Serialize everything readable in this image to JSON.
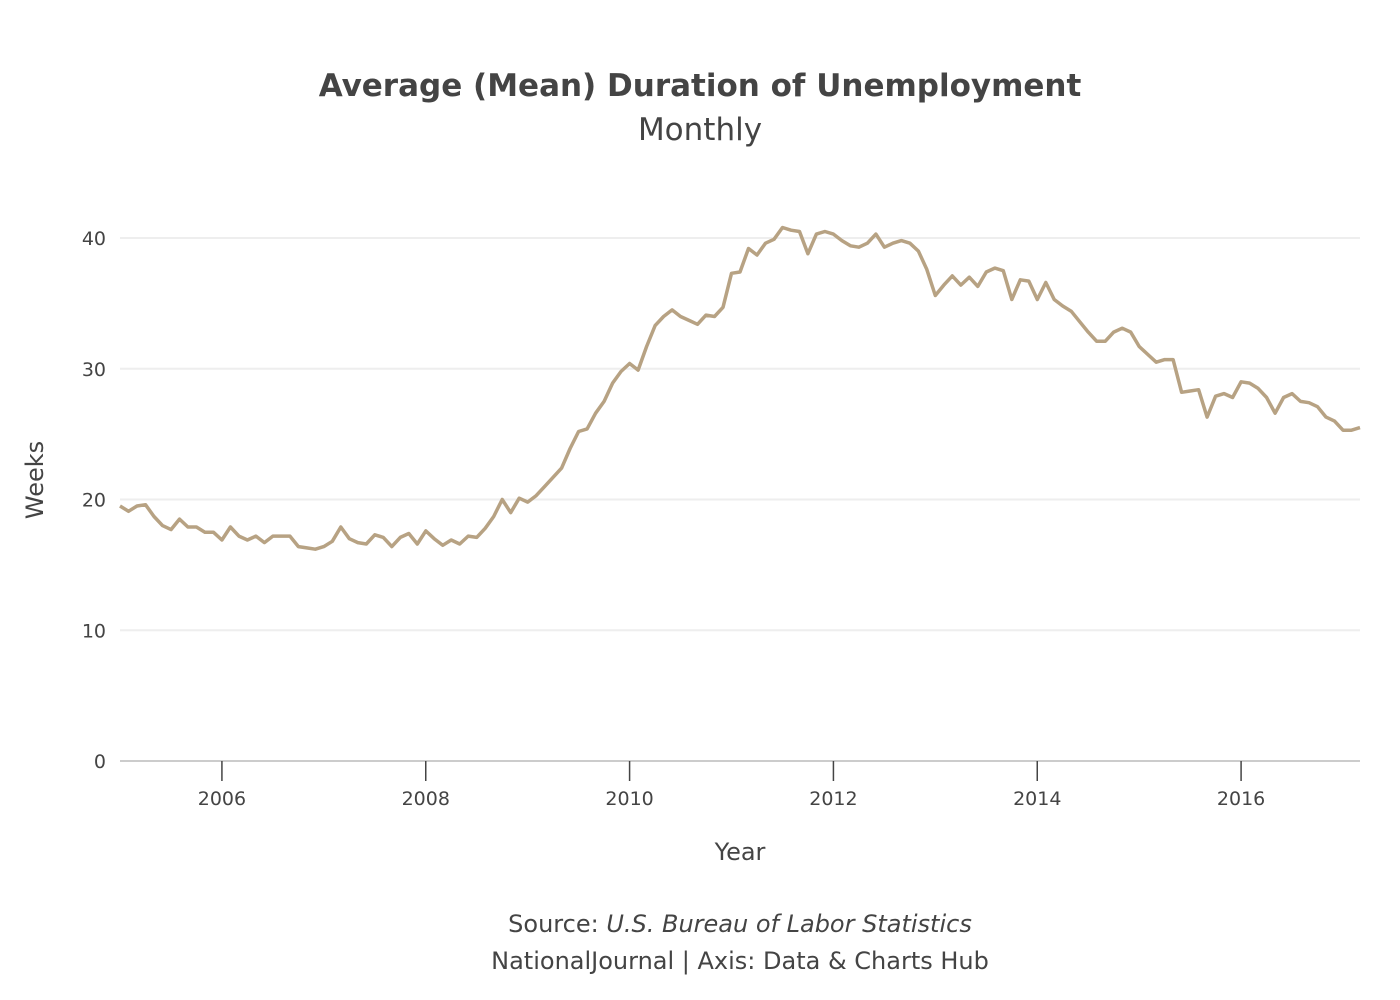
{
  "chart_data": {
    "type": "line",
    "title": "Average (Mean) Duration of Unemployment",
    "subtitle": "Monthly",
    "xlabel": "Year",
    "ylabel": "Weeks",
    "source_prefix": "Source: ",
    "source_name": "U.S. Bureau of Labor Statistics",
    "credit": "NationalJournal | Axis: Data & Charts Hub",
    "x_start": "2005-01",
    "x_end": "2017-03",
    "frequency": "monthly",
    "xlim": [
      2005.0,
      2017.1667
    ],
    "ylim": [
      0,
      42
    ],
    "x_ticks": [
      "2006",
      "2008",
      "2010",
      "2012",
      "2014",
      "2016"
    ],
    "y_ticks": [
      "0",
      "10",
      "20",
      "30",
      "40"
    ],
    "grid": true,
    "line_color": "#b7a283",
    "series": [
      {
        "values": [
          19.5,
          19.1,
          19.5,
          19.6,
          18.7,
          18.0,
          17.7,
          18.5,
          17.9,
          17.9,
          17.5,
          17.5,
          16.9,
          17.9,
          17.2,
          16.9,
          17.2,
          16.7,
          17.2,
          17.2,
          17.2,
          16.4,
          16.3,
          16.2,
          16.4,
          16.8,
          17.9,
          17.0,
          16.7,
          16.6,
          17.3,
          17.1,
          16.4,
          17.1,
          17.4,
          16.6,
          17.6,
          17.0,
          16.5,
          16.9,
          16.6,
          17.2,
          17.1,
          17.8,
          18.7,
          20.0,
          19.0,
          20.1,
          19.8,
          20.3,
          21.0,
          21.7,
          22.4,
          23.9,
          25.2,
          25.4,
          26.6,
          27.5,
          28.9,
          29.8,
          30.4,
          29.9,
          31.7,
          33.3,
          34.0,
          34.5,
          34.0,
          33.7,
          33.4,
          34.1,
          34.0,
          34.7,
          37.3,
          37.4,
          39.2,
          38.7,
          39.6,
          39.9,
          40.8,
          40.6,
          40.5,
          38.8,
          40.3,
          40.5,
          40.3,
          39.8,
          39.4,
          39.3,
          39.6,
          40.3,
          39.3,
          39.6,
          39.8,
          39.6,
          39.0,
          37.6,
          35.6,
          36.4,
          37.1,
          36.4,
          37.0,
          36.3,
          37.4,
          37.7,
          37.5,
          35.3,
          36.8,
          36.7,
          35.3,
          36.6,
          35.3,
          34.8,
          34.4,
          33.6,
          32.8,
          32.1,
          32.1,
          32.8,
          33.1,
          32.8,
          31.7,
          31.1,
          30.5,
          30.7,
          30.7,
          28.2,
          28.3,
          28.4,
          26.3,
          27.9,
          28.1,
          27.8,
          29.0,
          28.9,
          28.5,
          27.8,
          26.6,
          27.8,
          28.1,
          27.5,
          27.4,
          27.1,
          26.3,
          26.0,
          25.3,
          25.3,
          25.5
        ]
      }
    ]
  }
}
